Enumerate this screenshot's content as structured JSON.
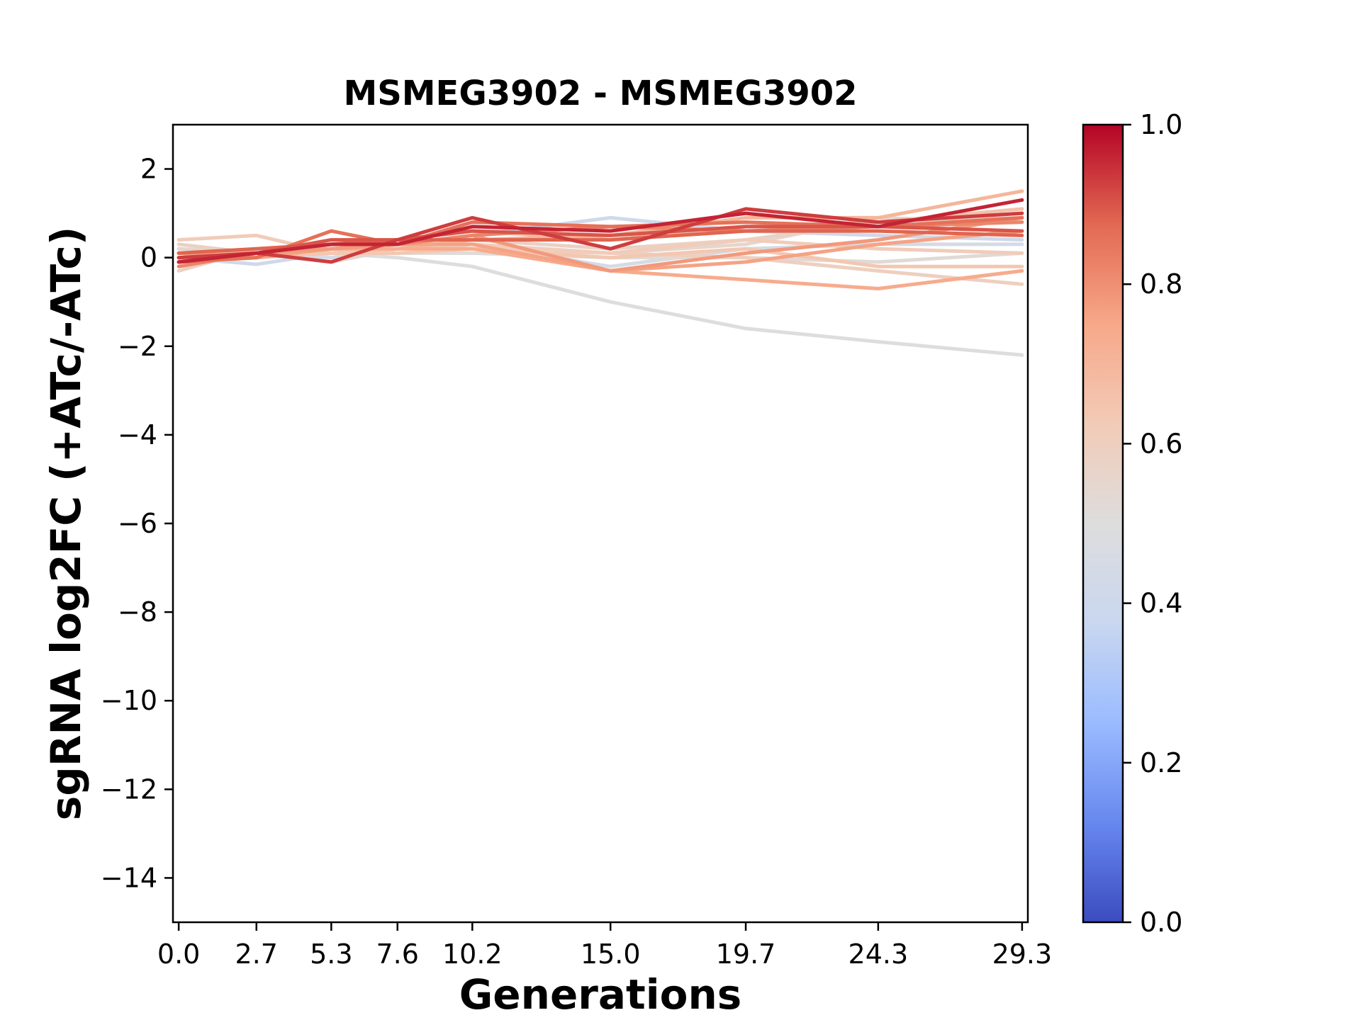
{
  "chart_data": {
    "type": "line",
    "title": "MSMEG3902 - MSMEG3902",
    "xlabel": "Generations",
    "ylabel": "sgRNA log2FC (+ATc/-ATc)",
    "x": [
      0.0,
      2.7,
      5.3,
      7.6,
      10.2,
      15.0,
      19.7,
      24.3,
      29.3
    ],
    "x_tick_labels": [
      "0.0",
      "2.7",
      "5.3",
      "7.6",
      "10.2",
      "15.0",
      "19.7",
      "24.3",
      "29.3"
    ],
    "xlim": [
      -0.2,
      29.5
    ],
    "ylim": [
      -15,
      3
    ],
    "y_ticks": [
      2,
      0,
      -2,
      -4,
      -6,
      -8,
      -10,
      -12,
      -14
    ],
    "y_tick_labels": [
      "2",
      "0",
      "−2",
      "−4",
      "−6",
      "−8",
      "−10",
      "−12",
      "−14"
    ],
    "grid": false,
    "colorbar": {
      "colormap": "coolwarm",
      "range": [
        0.0,
        1.0
      ],
      "ticks": [
        0.0,
        0.2,
        0.4,
        0.6,
        0.8,
        1.0
      ],
      "tick_labels": [
        "0.0",
        "0.2",
        "0.4",
        "0.6",
        "0.8",
        "1.0"
      ],
      "stops": [
        "#3b4cc0",
        "#6788ee",
        "#9abbff",
        "#c9d7f0",
        "#dddddd",
        "#f2cbb7",
        "#f7a889",
        "#e26952",
        "#b40426"
      ]
    },
    "series": [
      {
        "score": 0.5,
        "values": [
          0.0,
          0.0,
          0.1,
          0.0,
          -0.2,
          -1.0,
          -1.6,
          -1.9,
          -2.2
        ]
      },
      {
        "score": 0.42,
        "values": [
          0.0,
          -0.15,
          0.1,
          0.3,
          0.5,
          0.9,
          0.6,
          0.5,
          0.4
        ]
      },
      {
        "score": 0.45,
        "values": [
          0.1,
          0.1,
          0.0,
          0.2,
          0.3,
          -0.2,
          0.2,
          0.3,
          0.3
        ]
      },
      {
        "score": 0.52,
        "values": [
          -0.1,
          0.0,
          0.1,
          0.1,
          0.1,
          0.0,
          0.0,
          -0.1,
          0.1
        ]
      },
      {
        "score": 0.55,
        "values": [
          0.2,
          0.1,
          -0.1,
          0.2,
          0.3,
          0.1,
          0.3,
          0.9,
          0.8
        ]
      },
      {
        "score": 0.58,
        "values": [
          0.3,
          0.1,
          0.2,
          0.3,
          0.4,
          0.2,
          0.4,
          0.8,
          0.9
        ]
      },
      {
        "score": 0.6,
        "values": [
          -0.3,
          0.2,
          0.2,
          0.3,
          0.2,
          0.1,
          0.0,
          -0.3,
          -0.6
        ]
      },
      {
        "score": 0.62,
        "values": [
          0.4,
          0.5,
          0.1,
          0.2,
          0.3,
          0.1,
          0.4,
          0.2,
          0.1
        ]
      },
      {
        "score": 0.64,
        "values": [
          0.0,
          0.0,
          0.1,
          0.1,
          0.2,
          0.0,
          0.2,
          -0.2,
          -0.2
        ]
      },
      {
        "score": 0.66,
        "values": [
          -0.1,
          0.2,
          0.3,
          0.4,
          0.6,
          0.4,
          0.7,
          0.8,
          1.1
        ]
      },
      {
        "score": 0.7,
        "values": [
          0.1,
          0.1,
          0.2,
          0.2,
          0.4,
          0.5,
          0.9,
          0.9,
          1.5
        ]
      },
      {
        "score": 0.74,
        "values": [
          0.0,
          0.1,
          0.2,
          0.2,
          0.2,
          -0.3,
          -0.5,
          -0.7,
          -0.3
        ]
      },
      {
        "score": 0.76,
        "values": [
          0.1,
          0.0,
          0.2,
          0.3,
          0.3,
          -0.3,
          -0.1,
          0.3,
          0.6
        ]
      },
      {
        "score": 0.78,
        "values": [
          0.0,
          0.1,
          0.2,
          0.3,
          0.5,
          -0.3,
          0.1,
          0.4,
          0.9
        ]
      },
      {
        "score": 0.82,
        "values": [
          -0.2,
          0.1,
          0.3,
          0.3,
          0.5,
          0.7,
          0.6,
          0.7,
          0.8
        ]
      },
      {
        "score": 0.86,
        "values": [
          -0.1,
          0.0,
          0.6,
          0.3,
          0.8,
          0.7,
          0.8,
          0.7,
          0.9
        ]
      },
      {
        "score": 0.88,
        "values": [
          0.1,
          0.2,
          0.3,
          0.4,
          0.4,
          0.4,
          0.6,
          0.6,
          0.5
        ]
      },
      {
        "score": 0.9,
        "values": [
          -0.1,
          0.1,
          0.4,
          0.4,
          0.6,
          0.5,
          0.7,
          0.7,
          0.6
        ]
      },
      {
        "score": 0.93,
        "values": [
          0.0,
          0.1,
          -0.1,
          0.4,
          0.9,
          0.2,
          1.1,
          0.8,
          1.0
        ]
      },
      {
        "score": 0.96,
        "values": [
          -0.1,
          0.1,
          0.3,
          0.3,
          0.7,
          0.6,
          1.0,
          0.7,
          1.3
        ]
      }
    ]
  }
}
